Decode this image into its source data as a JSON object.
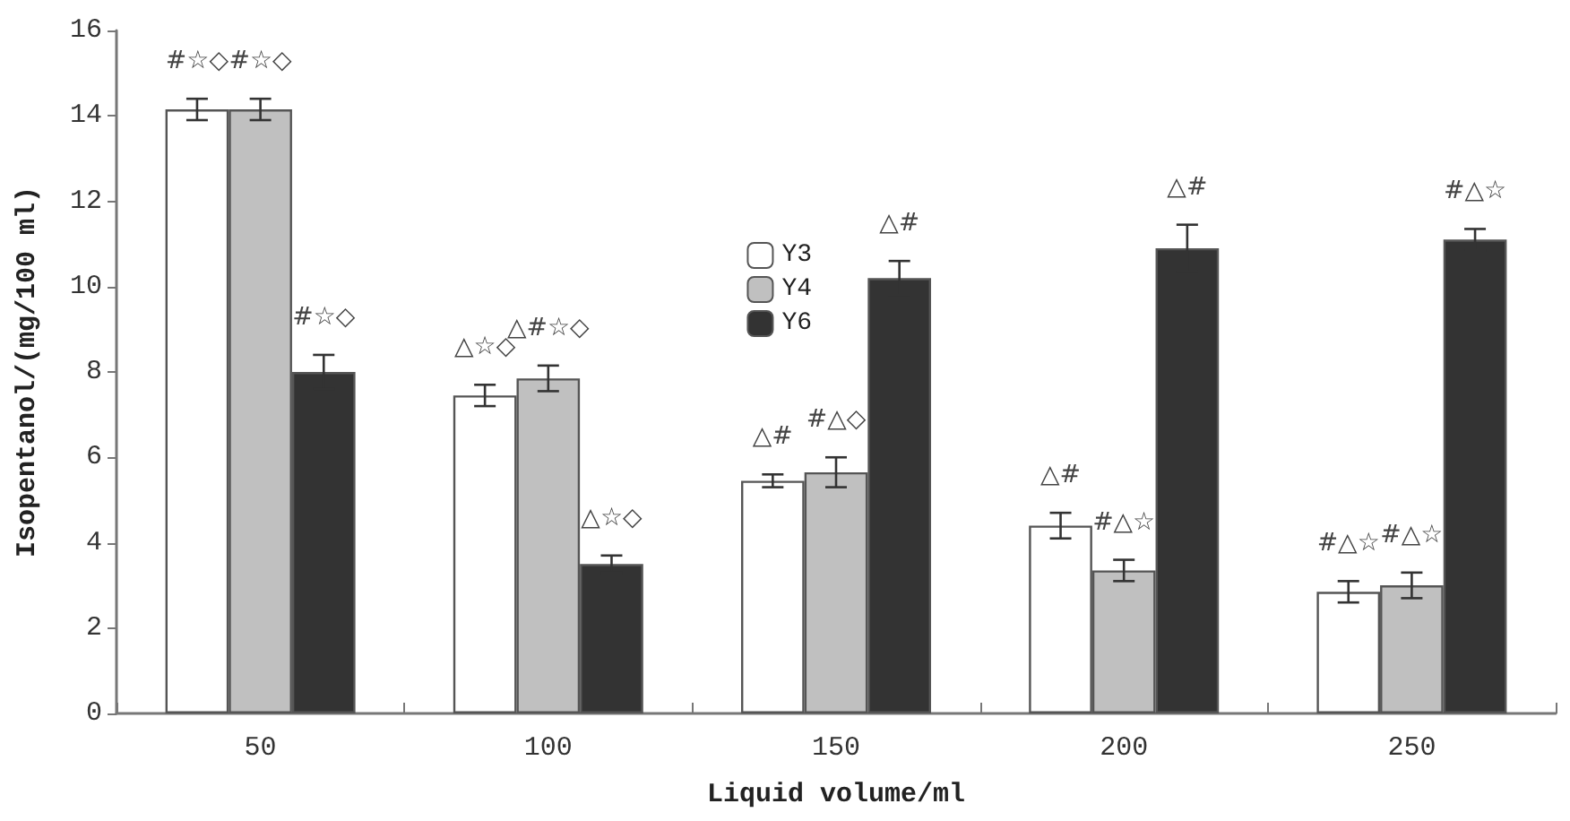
{
  "chart_data": {
    "type": "bar",
    "xlabel": "Liquid volume/ml",
    "ylabel": "Isopentanol/(mg/100 ml)",
    "categories": [
      "50",
      "100",
      "150",
      "200",
      "250"
    ],
    "series": [
      {
        "name": "Y3",
        "color": "#ffffff",
        "values": [
          14.15,
          7.45,
          5.45,
          4.4,
          2.85
        ],
        "errors": [
          0.25,
          0.25,
          0.15,
          0.3,
          0.25
        ],
        "value_labels": [
          "#☆◇",
          "△☆◇",
          "△#",
          "△#",
          "#△☆"
        ]
      },
      {
        "name": "Y4",
        "color": "#c0c0c0",
        "values": [
          14.15,
          7.85,
          5.65,
          3.35,
          3.0
        ],
        "errors": [
          0.25,
          0.3,
          0.35,
          0.25,
          0.3
        ],
        "value_labels": [
          "#☆◇",
          "△#☆◇",
          "#△◇",
          "#△☆",
          "#△☆"
        ]
      },
      {
        "name": "Y6",
        "color": "#333333",
        "values": [
          8.0,
          3.5,
          10.2,
          10.9,
          11.1
        ],
        "errors": [
          0.4,
          0.2,
          0.4,
          0.55,
          0.25
        ],
        "value_labels": [
          "#☆◇",
          "△☆◇",
          "△#",
          "△#",
          "#△☆"
        ]
      }
    ],
    "ylim": [
      0,
      16
    ],
    "yticks": [
      0,
      2,
      4,
      6,
      8,
      10,
      12,
      14,
      16
    ],
    "grid": false,
    "legend": "top"
  }
}
